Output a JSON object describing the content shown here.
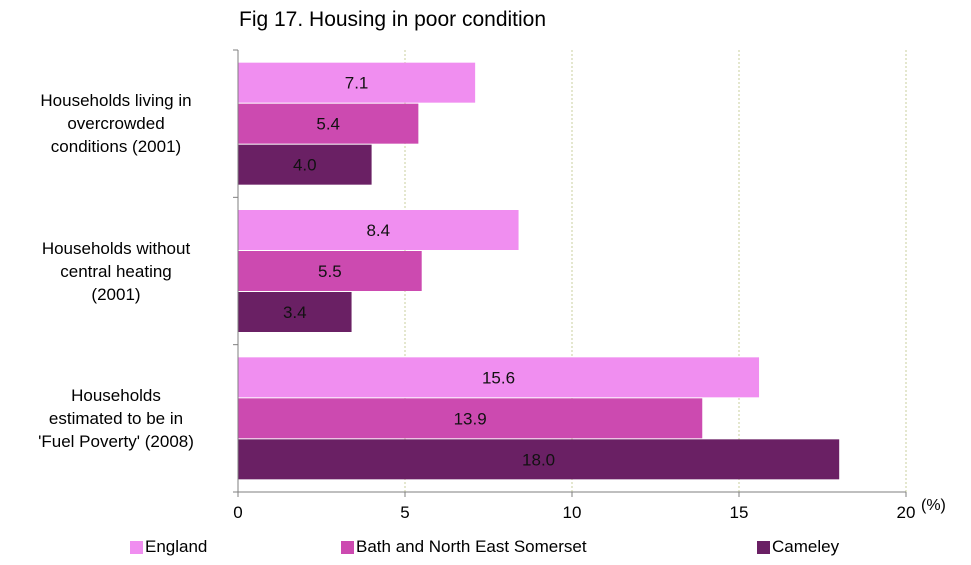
{
  "chart_data": {
    "type": "bar",
    "orientation": "horizontal",
    "title": "Fig 17. Housing in poor condition",
    "xlabel": "(%)",
    "xlim": [
      0,
      20
    ],
    "xticks": [
      "0",
      "5",
      "10",
      "15",
      "20"
    ],
    "grid": "vertical dotted",
    "legend_position": "bottom",
    "categories": [
      "Households living in overcrowded conditions (2001)",
      "Households without central heating (2001)",
      "Households estimated to be in 'Fuel Poverty' (2008)"
    ],
    "category_display": [
      "Households living in\novercrowded\nconditions (2001)",
      "Households without\ncentral heating\n(2001)",
      "Households\nestimated to be in\n'Fuel Poverty' (2008)"
    ],
    "series": [
      {
        "name": "England",
        "color": "#f08ef0",
        "values": [
          7.1,
          8.4,
          15.6
        ],
        "labels": [
          "7.1",
          "8.4",
          "15.6"
        ]
      },
      {
        "name": "Bath and North East Somerset",
        "color": "#cc4ab0",
        "values": [
          5.4,
          5.5,
          13.9
        ],
        "labels": [
          "5.4",
          "5.5",
          "13.9"
        ]
      },
      {
        "name": "Cameley",
        "color": "#6a2064",
        "values": [
          4.0,
          3.4,
          18.0
        ],
        "labels": [
          "4.0",
          "3.4",
          "18.0"
        ]
      }
    ]
  }
}
